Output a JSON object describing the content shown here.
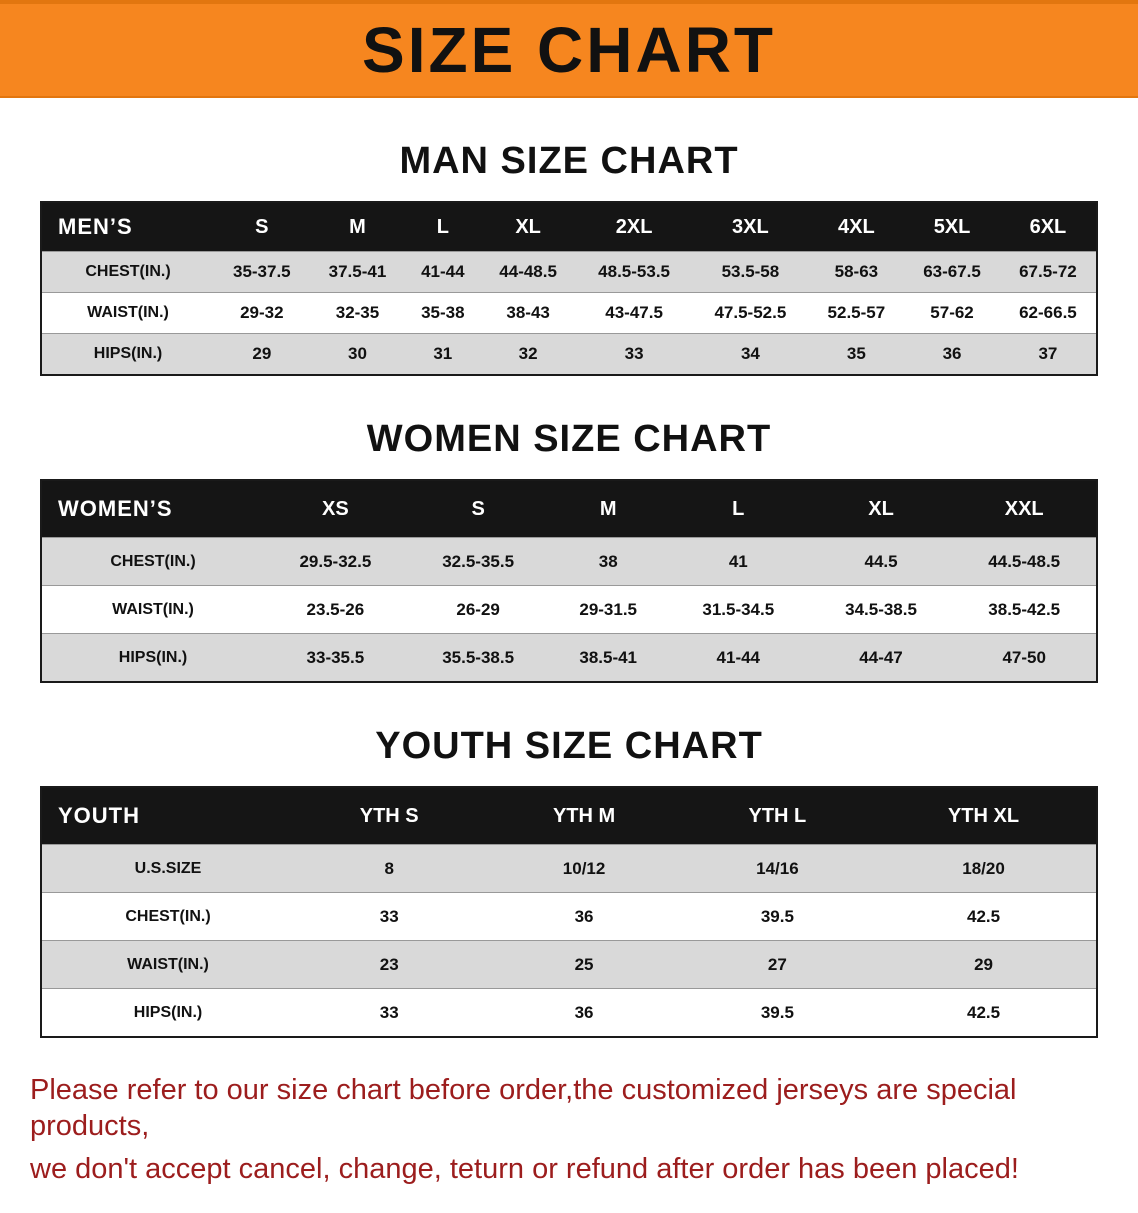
{
  "banner": {
    "title": "SIZE CHART",
    "bg_color": "#f6861f",
    "text_color": "#111111"
  },
  "colors": {
    "table_header_bg": "#151515",
    "table_header_text": "#ffffff",
    "row_shade": "#d9d9d9",
    "footer_text": "#9c1d1d"
  },
  "sections": [
    {
      "id": "men",
      "title": "MAN SIZE CHART",
      "table": {
        "header": [
          "MEN’S",
          "S",
          "M",
          "L",
          "XL",
          "2XL",
          "3XL",
          "4XL",
          "5XL",
          "6XL"
        ],
        "rows": [
          [
            "CHEST(IN.)",
            "35-37.5",
            "37.5-41",
            "41-44",
            "44-48.5",
            "48.5-53.5",
            "53.5-58",
            "58-63",
            "63-67.5",
            "67.5-72"
          ],
          [
            "WAIST(IN.)",
            "29-32",
            "32-35",
            "35-38",
            "38-43",
            "43-47.5",
            "47.5-52.5",
            "52.5-57",
            "57-62",
            "62-66.5"
          ],
          [
            "HIPS(IN.)",
            "29",
            "30",
            "31",
            "32",
            "33",
            "34",
            "35",
            "36",
            "37"
          ]
        ]
      }
    },
    {
      "id": "women",
      "title": "WOMEN SIZE CHART",
      "table": {
        "header": [
          "WOMEN’S",
          "XS",
          "S",
          "M",
          "L",
          "XL",
          "XXL"
        ],
        "rows": [
          [
            "CHEST(IN.)",
            "29.5-32.5",
            "32.5-35.5",
            "38",
            "41",
            "44.5",
            "44.5-48.5"
          ],
          [
            "WAIST(IN.)",
            "23.5-26",
            "26-29",
            "29-31.5",
            "31.5-34.5",
            "34.5-38.5",
            "38.5-42.5"
          ],
          [
            "HIPS(IN.)",
            "33-35.5",
            "35.5-38.5",
            "38.5-41",
            "41-44",
            "44-47",
            "47-50"
          ]
        ]
      }
    },
    {
      "id": "youth",
      "title": "YOUTH SIZE CHART",
      "table": {
        "header": [
          "YOUTH",
          "YTH S",
          "YTH M",
          "YTH L",
          "YTH XL"
        ],
        "rows": [
          [
            "U.S.SIZE",
            "8",
            "10/12",
            "14/16",
            "18/20"
          ],
          [
            "CHEST(IN.)",
            "33",
            "36",
            "39.5",
            "42.5"
          ],
          [
            "WAIST(IN.)",
            "23",
            "25",
            "27",
            "29"
          ],
          [
            "HIPS(IN.)",
            "33",
            "36",
            "39.5",
            "42.5"
          ]
        ]
      }
    }
  ],
  "footer": {
    "lines": [
      "Please refer to our size chart before order,the customized jerseys are special products,",
      "we don't accept cancel, change, teturn or refund after order has been placed!"
    ]
  }
}
